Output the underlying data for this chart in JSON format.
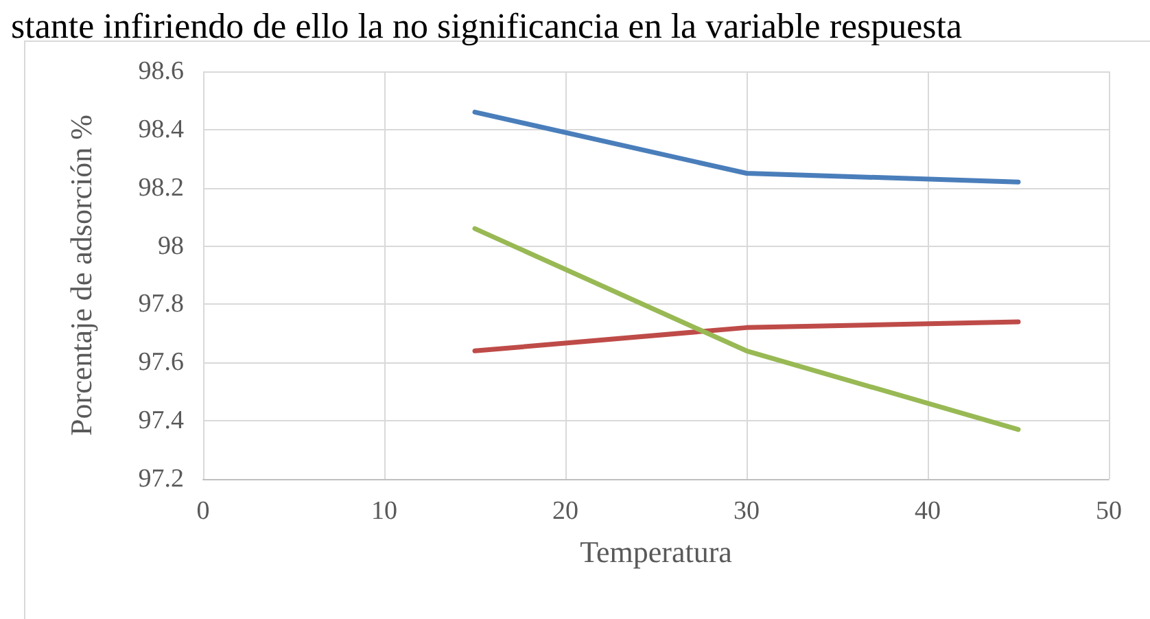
{
  "chart_data": {
    "type": "line",
    "annotations": [
      "stante infiriendo de ello la no significancia en la variable respuesta"
    ],
    "xlabel": "Temperatura",
    "ylabel": "Porcentaje de adsorción %",
    "x": [
      15,
      30,
      45
    ],
    "series": [
      {
        "color": "#4a7ebb",
        "values": [
          98.46,
          98.25,
          98.22
        ]
      },
      {
        "color": "#be4b48",
        "values": [
          97.64,
          97.72,
          97.74
        ]
      },
      {
        "color": "#98b954",
        "values": [
          98.06,
          97.64,
          97.37
        ]
      }
    ],
    "xlim": [
      0,
      50
    ],
    "xticks": [
      0,
      10,
      20,
      30,
      40,
      50
    ],
    "ylim": [
      97.2,
      98.6
    ],
    "yticks": [
      97.2,
      97.4,
      97.6,
      97.8,
      98,
      98.2,
      98.4,
      98.6
    ],
    "grid": true,
    "marker": "none",
    "line_style": "solid"
  }
}
